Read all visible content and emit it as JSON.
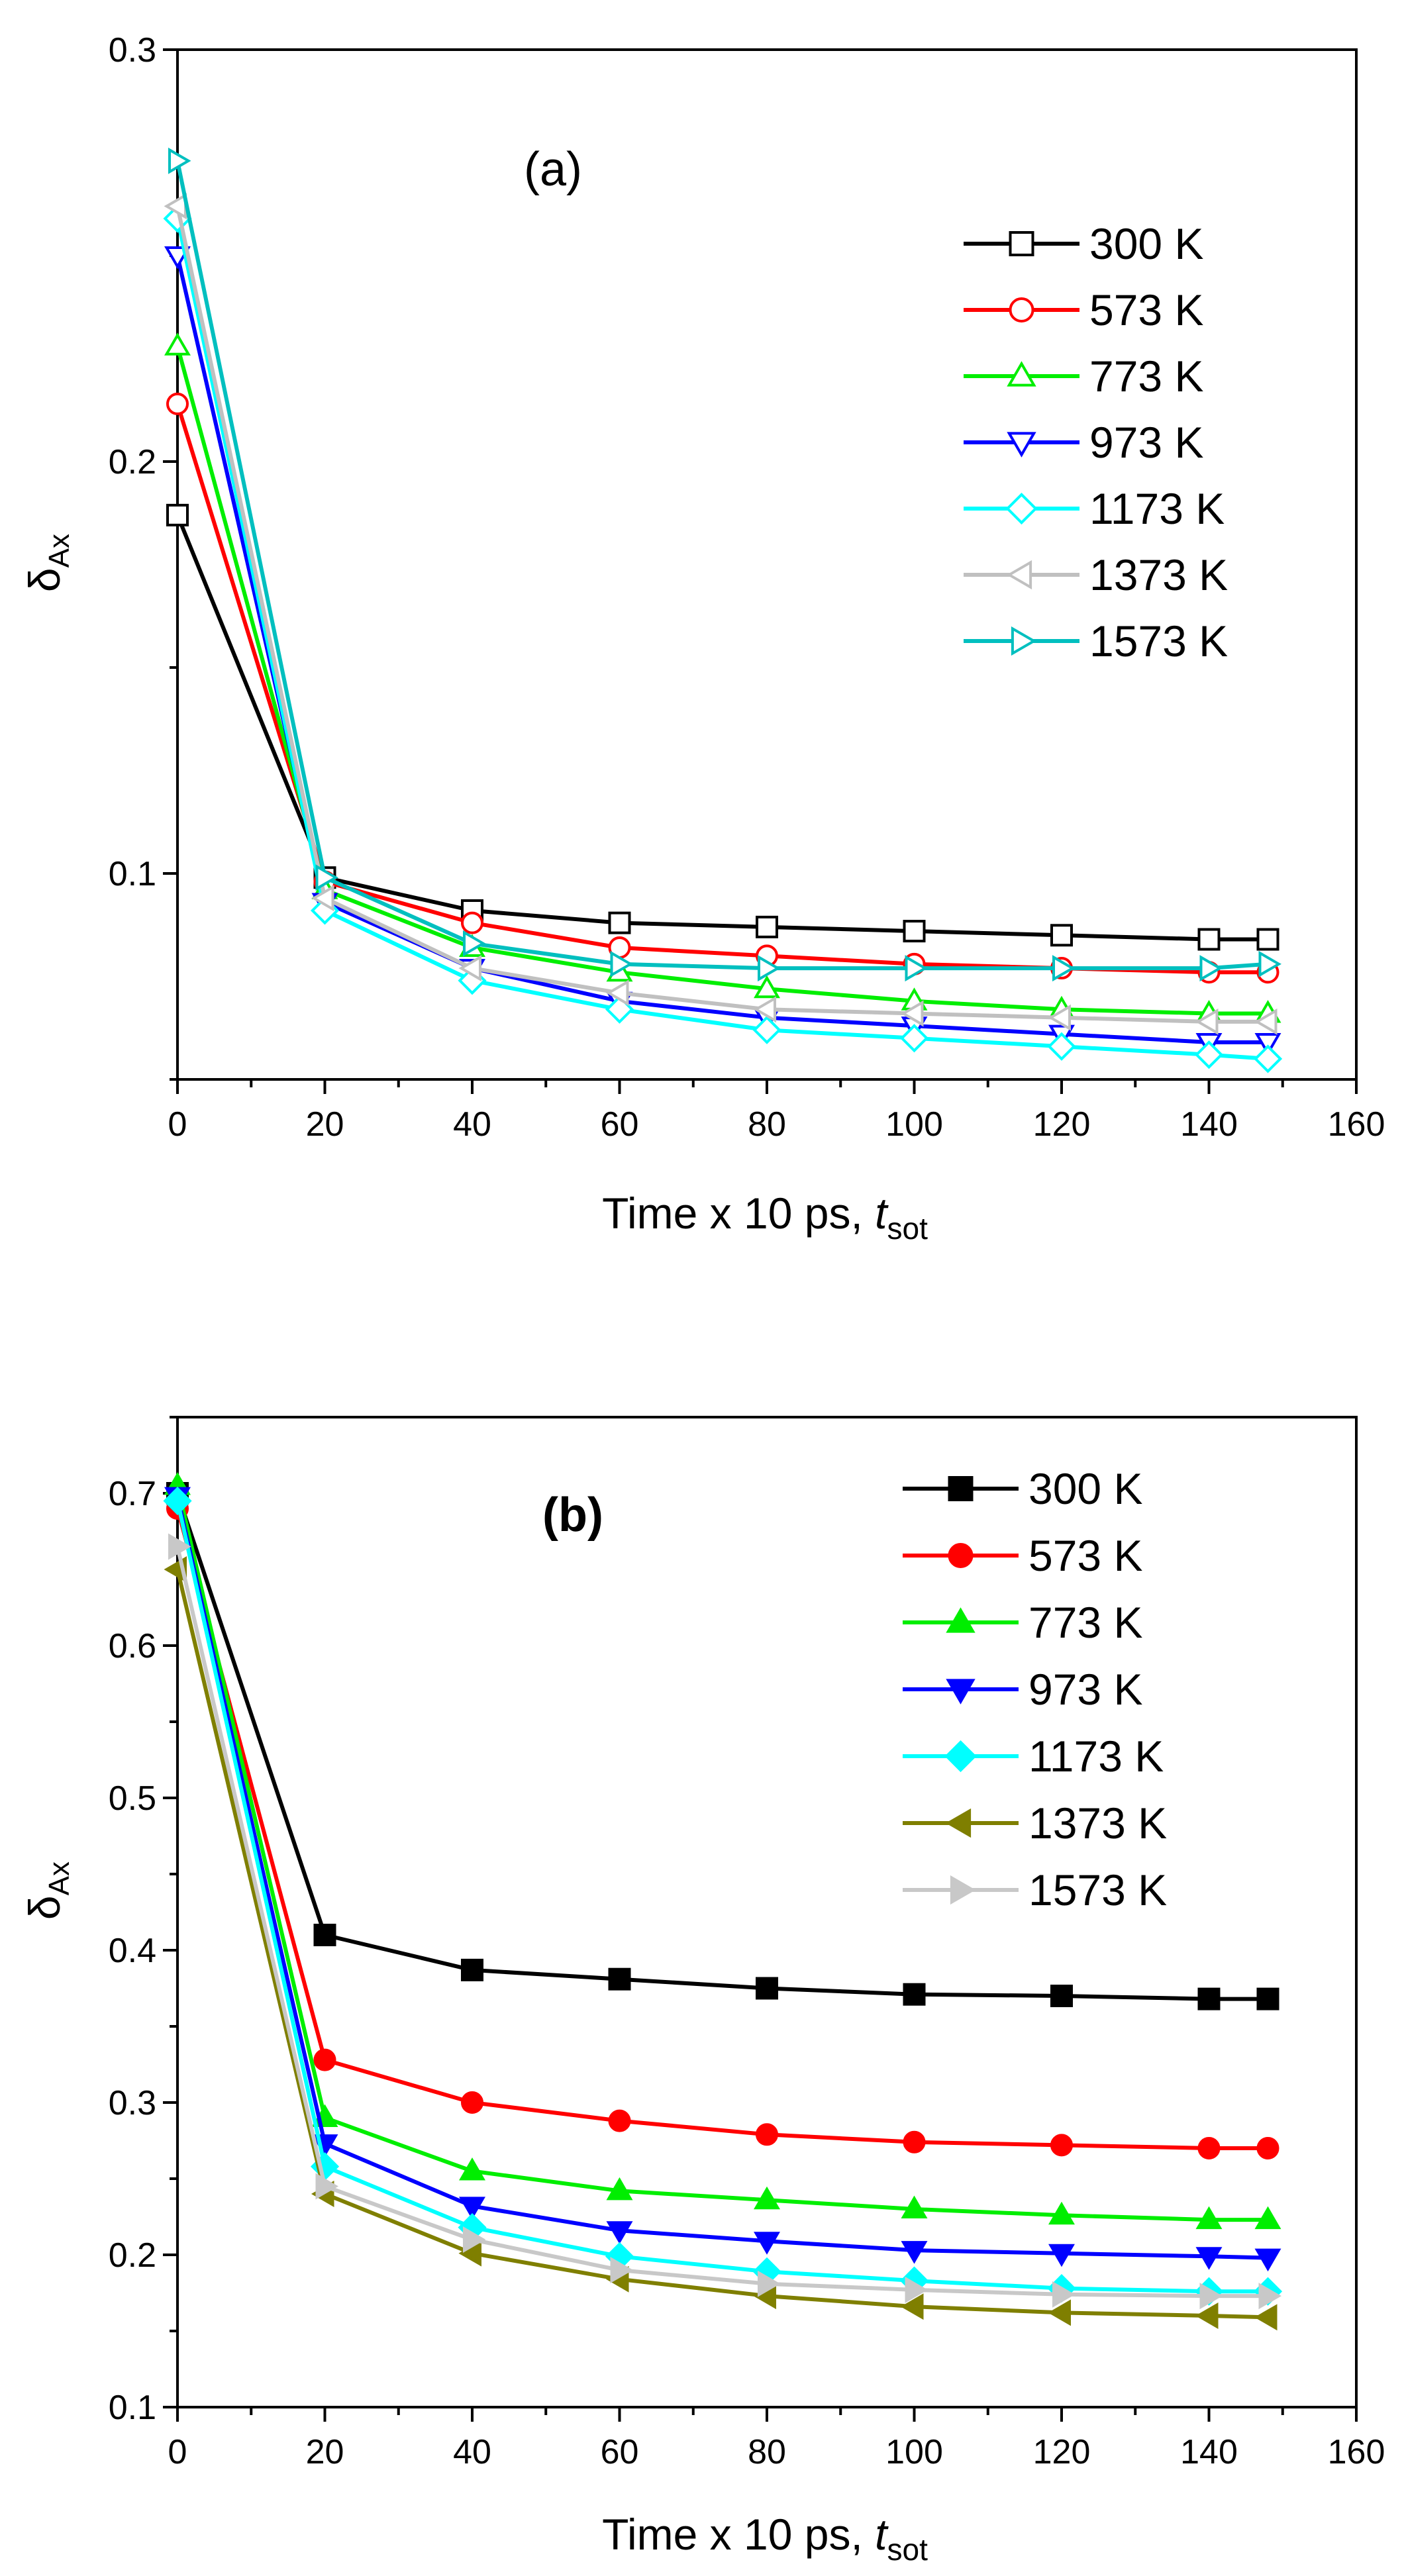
{
  "chart_data": [
    {
      "type": "line",
      "panel_label": "(a)",
      "panel_label_bold": false,
      "marker_fill": "open",
      "xlabel_main": "Time x 10 ps, ",
      "xlabel_var": "t",
      "xlabel_sub": "sot",
      "ylabel_main": "δ",
      "ylabel_sub": "Ax",
      "xlim": [
        0,
        160
      ],
      "ylim": [
        0.05,
        0.3
      ],
      "y_ticks_labeled": [
        "0.1",
        "0.2",
        "0.3"
      ],
      "y_tick_values": [
        0.1,
        0.2,
        0.3
      ],
      "y_minor_ticks": [
        0.05,
        0.15,
        0.25
      ],
      "x_ticks": [
        0,
        20,
        40,
        60,
        80,
        100,
        120,
        140,
        160
      ],
      "legend_position": "top-right",
      "x": [
        0,
        20,
        40,
        60,
        80,
        100,
        120,
        140,
        148
      ],
      "series": [
        {
          "name": "300 K",
          "color": "#000000",
          "marker": "square",
          "values": [
            0.187,
            0.099,
            0.091,
            0.088,
            0.087,
            0.086,
            0.085,
            0.084,
            0.084
          ]
        },
        {
          "name": "573 K",
          "color": "#ff0000",
          "marker": "circle",
          "values": [
            0.214,
            0.098,
            0.088,
            0.082,
            0.08,
            0.078,
            0.077,
            0.076,
            0.076
          ]
        },
        {
          "name": "773 K",
          "color": "#00ee00",
          "marker": "triangle-up",
          "values": [
            0.228,
            0.096,
            0.082,
            0.076,
            0.072,
            0.069,
            0.067,
            0.066,
            0.066
          ]
        },
        {
          "name": "973 K",
          "color": "#0000ff",
          "marker": "triangle-down",
          "values": [
            0.25,
            0.093,
            0.077,
            0.069,
            0.065,
            0.063,
            0.061,
            0.059,
            0.059
          ]
        },
        {
          "name": "1173 K",
          "color": "#00ffff",
          "marker": "diamond",
          "values": [
            0.259,
            0.091,
            0.074,
            0.067,
            0.062,
            0.06,
            0.058,
            0.056,
            0.055
          ]
        },
        {
          "name": "1373 K",
          "color": "#c0c0c0",
          "marker": "triangle-left",
          "values": [
            0.262,
            0.094,
            0.077,
            0.071,
            0.067,
            0.066,
            0.065,
            0.064,
            0.064
          ]
        },
        {
          "name": "1573 K",
          "color": "#00bfbf",
          "marker": "triangle-right",
          "values": [
            0.273,
            0.099,
            0.083,
            0.078,
            0.077,
            0.077,
            0.077,
            0.077,
            0.078
          ]
        }
      ]
    },
    {
      "type": "line",
      "panel_label": "(b)",
      "panel_label_bold": true,
      "marker_fill": "solid",
      "xlabel_main": "Time x 10 ps, ",
      "xlabel_var": "t",
      "xlabel_sub": "sot",
      "ylabel_main": "δ",
      "ylabel_sub": "Ax",
      "xlim": [
        0,
        160
      ],
      "ylim": [
        0.1,
        0.75
      ],
      "y_ticks_labeled": [
        "0.1",
        "0.2",
        "0.3",
        "0.4",
        "0.5",
        "0.6",
        "0.7"
      ],
      "y_tick_values": [
        0.1,
        0.2,
        0.3,
        0.4,
        0.5,
        0.6,
        0.7
      ],
      "y_minor_ticks": [
        0.15,
        0.25,
        0.35,
        0.45,
        0.55,
        0.65,
        0.75
      ],
      "x_ticks": [
        0,
        20,
        40,
        60,
        80,
        100,
        120,
        140,
        160
      ],
      "legend_position": "top-right",
      "x": [
        0,
        20,
        40,
        60,
        80,
        100,
        120,
        140,
        148
      ],
      "series": [
        {
          "name": "300 K",
          "color": "#000000",
          "marker": "square",
          "values": [
            0.7,
            0.41,
            0.387,
            0.381,
            0.375,
            0.371,
            0.37,
            0.368,
            0.368
          ]
        },
        {
          "name": "573 K",
          "color": "#ff0000",
          "marker": "circle",
          "values": [
            0.69,
            0.328,
            0.3,
            0.288,
            0.279,
            0.274,
            0.272,
            0.27,
            0.27
          ]
        },
        {
          "name": "773 K",
          "color": "#00ee00",
          "marker": "triangle-up",
          "values": [
            0.705,
            0.29,
            0.255,
            0.242,
            0.236,
            0.23,
            0.226,
            0.223,
            0.223
          ]
        },
        {
          "name": "973 K",
          "color": "#0000ff",
          "marker": "triangle-down",
          "values": [
            0.698,
            0.273,
            0.232,
            0.216,
            0.209,
            0.203,
            0.201,
            0.199,
            0.198
          ]
        },
        {
          "name": "1173 K",
          "color": "#00ffff",
          "marker": "diamond",
          "values": [
            0.695,
            0.258,
            0.218,
            0.199,
            0.189,
            0.183,
            0.178,
            0.176,
            0.176
          ]
        },
        {
          "name": "1373 K",
          "color": "#7f7f00",
          "marker": "triangle-left",
          "values": [
            0.65,
            0.24,
            0.201,
            0.184,
            0.173,
            0.166,
            0.162,
            0.16,
            0.159
          ]
        },
        {
          "name": "1573 K",
          "color": "#c8c8c8",
          "marker": "triangle-right",
          "values": [
            0.665,
            0.245,
            0.21,
            0.19,
            0.181,
            0.177,
            0.174,
            0.173,
            0.173
          ]
        }
      ]
    }
  ]
}
